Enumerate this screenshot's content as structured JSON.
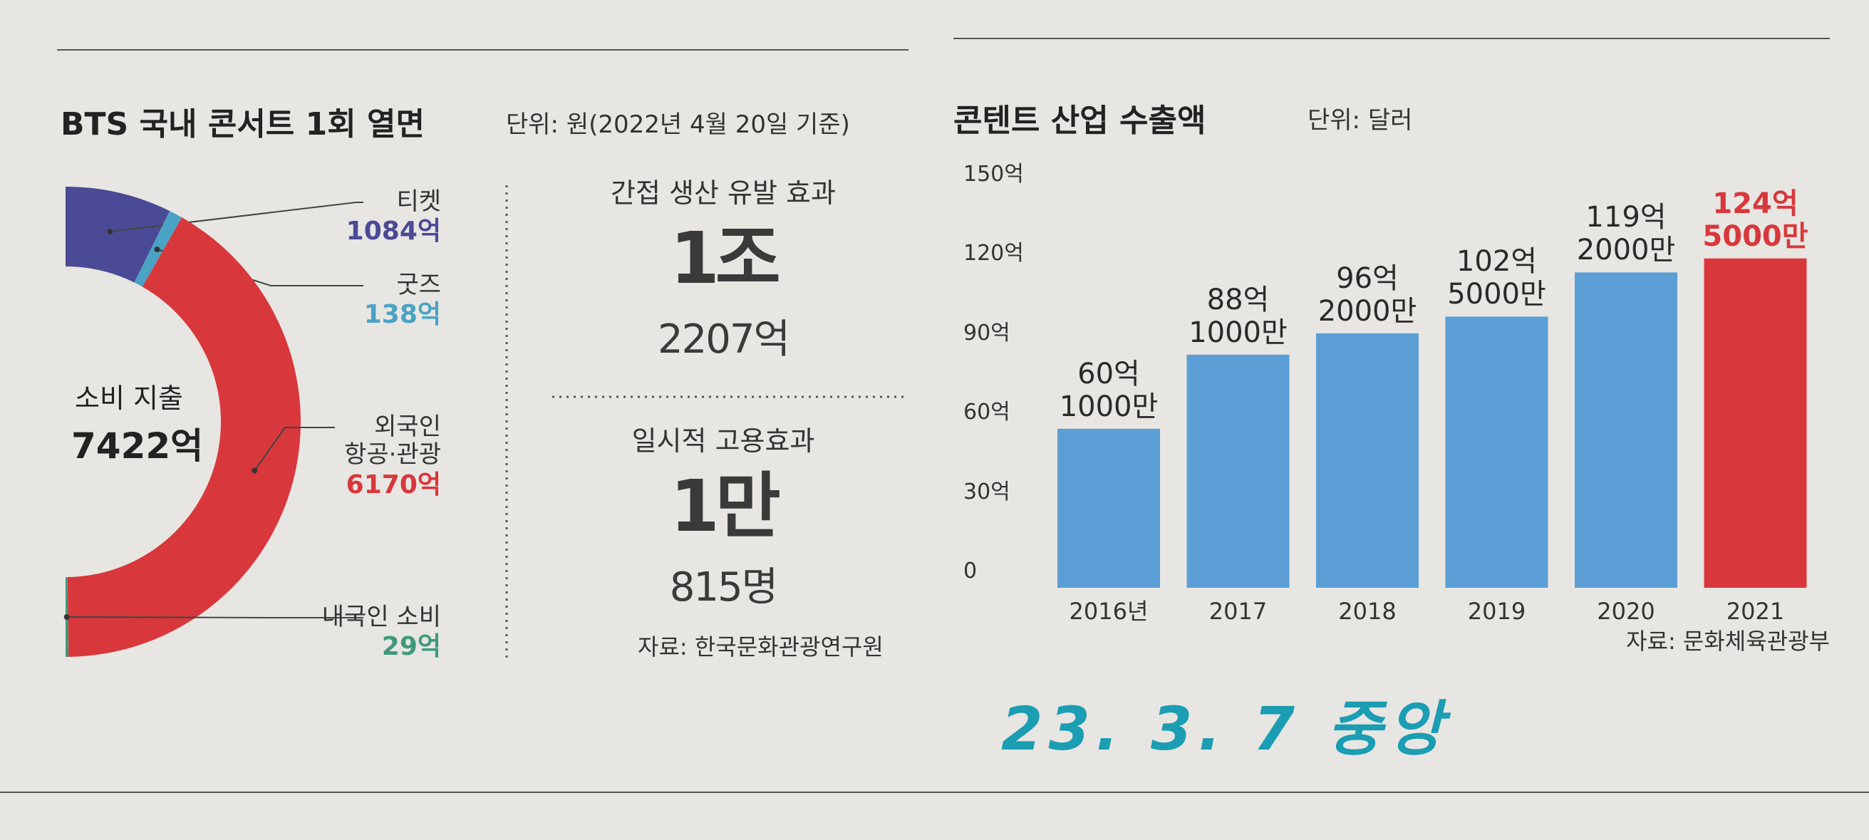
{
  "chart_data": [
    {
      "type": "donut",
      "title": "BTS 국내 콘서트 1회 열면",
      "subtitle": "단위: 원(2022년 4월 20일 기준)",
      "center_label": "소비 지출",
      "total": 7422,
      "total_label": "7422억",
      "categories": [
        "티켓",
        "굿즈",
        "외국인\n항공·관광",
        "내국인 소비"
      ],
      "values": [
        1084,
        138,
        6170,
        29
      ],
      "value_labels": [
        "1084억",
        "138억",
        "6170억",
        "29억"
      ],
      "colors": [
        "#4b4a96",
        "#4aa3c4",
        "#d8383c",
        "#3f9a7c"
      ]
    },
    {
      "type": "bar",
      "title": "콘텐트 산업 수출액",
      "subtitle": "단위: 달러",
      "categories": [
        "2016년",
        "2017",
        "2018",
        "2019",
        "2020",
        "2021"
      ],
      "values": [
        60.1,
        88.1,
        96.2,
        102.5,
        119.2,
        124.5
      ],
      "value_labels": [
        "60억\n1000만",
        "88억\n1000만",
        "96억\n2000만",
        "102억\n5000만",
        "119억\n2000만",
        "124억\n5000만"
      ],
      "colors": [
        "#5b9fd6",
        "#5b9fd6",
        "#5b9fd6",
        "#5b9fd6",
        "#5b9fd6",
        "#d8383c"
      ],
      "ylim": [
        0,
        150
      ],
      "yticks": [
        0,
        {
          "value": 30,
          "label": "30억"
        },
        {
          "value": 60,
          "label": "60억"
        },
        {
          "value": 90,
          "label": "90억"
        },
        {
          "value": 120,
          "label": "120억"
        },
        {
          "value": 150,
          "label": "150억"
        }
      ],
      "source": "자료: 문화체육관광부"
    }
  ],
  "stats": {
    "items": [
      {
        "label": "간접 생산 유발 효과",
        "big": "1조",
        "small": "2207억"
      },
      {
        "label": "일시적 고용효과",
        "big": "1만",
        "small": "815명"
      }
    ],
    "source": "자료: 한국문화관광연구원"
  },
  "annotation": "23. 3. 7 중앙"
}
